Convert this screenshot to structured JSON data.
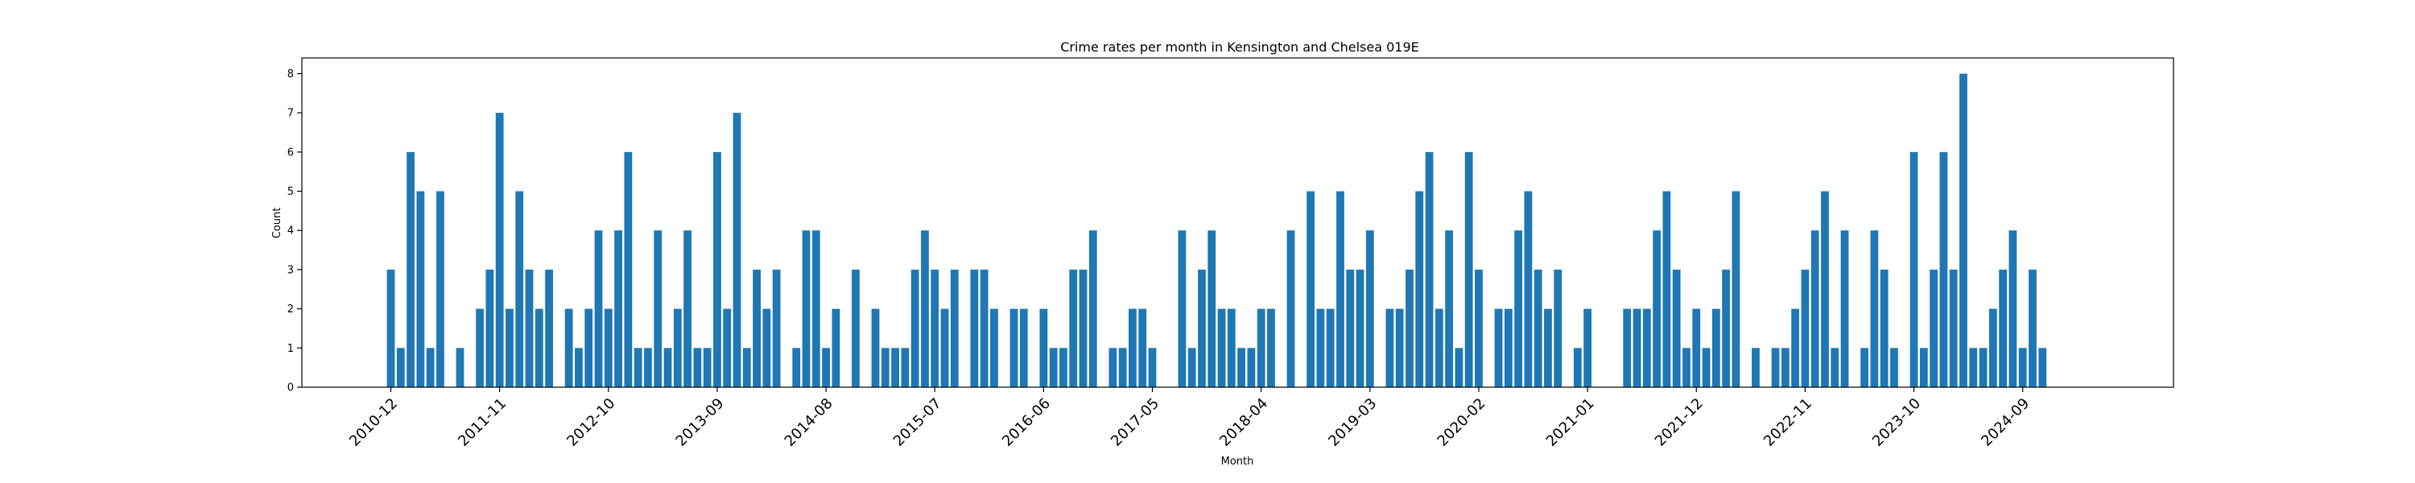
{
  "chart_data": {
    "type": "bar",
    "title": "Crime rates per month in Kensington and Chelsea 019E",
    "xlabel": "Month",
    "ylabel": "Count",
    "ylim": [
      0,
      8.4
    ],
    "y_ticks": [
      0,
      1,
      2,
      3,
      4,
      5,
      6,
      7,
      8
    ],
    "x_tick_labels": [
      "2010-12",
      "2011-11",
      "2012-10",
      "2013-09",
      "2014-08",
      "2015-07",
      "2016-06",
      "2017-05",
      "2018-04",
      "2019-03",
      "2020-02",
      "2021-01",
      "2021-12",
      "2022-11",
      "2023-10",
      "2024-09"
    ],
    "x_start": "2010-12",
    "bar_color": "#1f77b4",
    "grid": false,
    "values": [
      3,
      1,
      6,
      5,
      1,
      5,
      0,
      1,
      0,
      2,
      3,
      7,
      2,
      5,
      3,
      2,
      3,
      0,
      2,
      1,
      2,
      4,
      2,
      4,
      6,
      1,
      1,
      4,
      1,
      2,
      4,
      1,
      1,
      6,
      2,
      7,
      1,
      3,
      2,
      3,
      0,
      1,
      4,
      4,
      1,
      2,
      0,
      3,
      0,
      2,
      1,
      1,
      1,
      3,
      4,
      3,
      2,
      3,
      0,
      3,
      3,
      2,
      0,
      2,
      2,
      0,
      2,
      1,
      1,
      3,
      3,
      4,
      0,
      1,
      1,
      2,
      2,
      1,
      0,
      0,
      4,
      1,
      3,
      4,
      2,
      2,
      1,
      1,
      2,
      2,
      0,
      4,
      0,
      5,
      2,
      2,
      5,
      3,
      3,
      4,
      0,
      2,
      2,
      3,
      5,
      6,
      2,
      4,
      1,
      6,
      3,
      0,
      2,
      2,
      4,
      5,
      3,
      2,
      3,
      0,
      1,
      2,
      0,
      0,
      0,
      2,
      2,
      2,
      4,
      5,
      3,
      1,
      2,
      1,
      2,
      3,
      5,
      0,
      1,
      0,
      1,
      1,
      2,
      3,
      4,
      5,
      1,
      4,
      0,
      1,
      4,
      3,
      1,
      0,
      6,
      1,
      3,
      6,
      3,
      8,
      1,
      1,
      2,
      3,
      4,
      1,
      3,
      1
    ]
  }
}
